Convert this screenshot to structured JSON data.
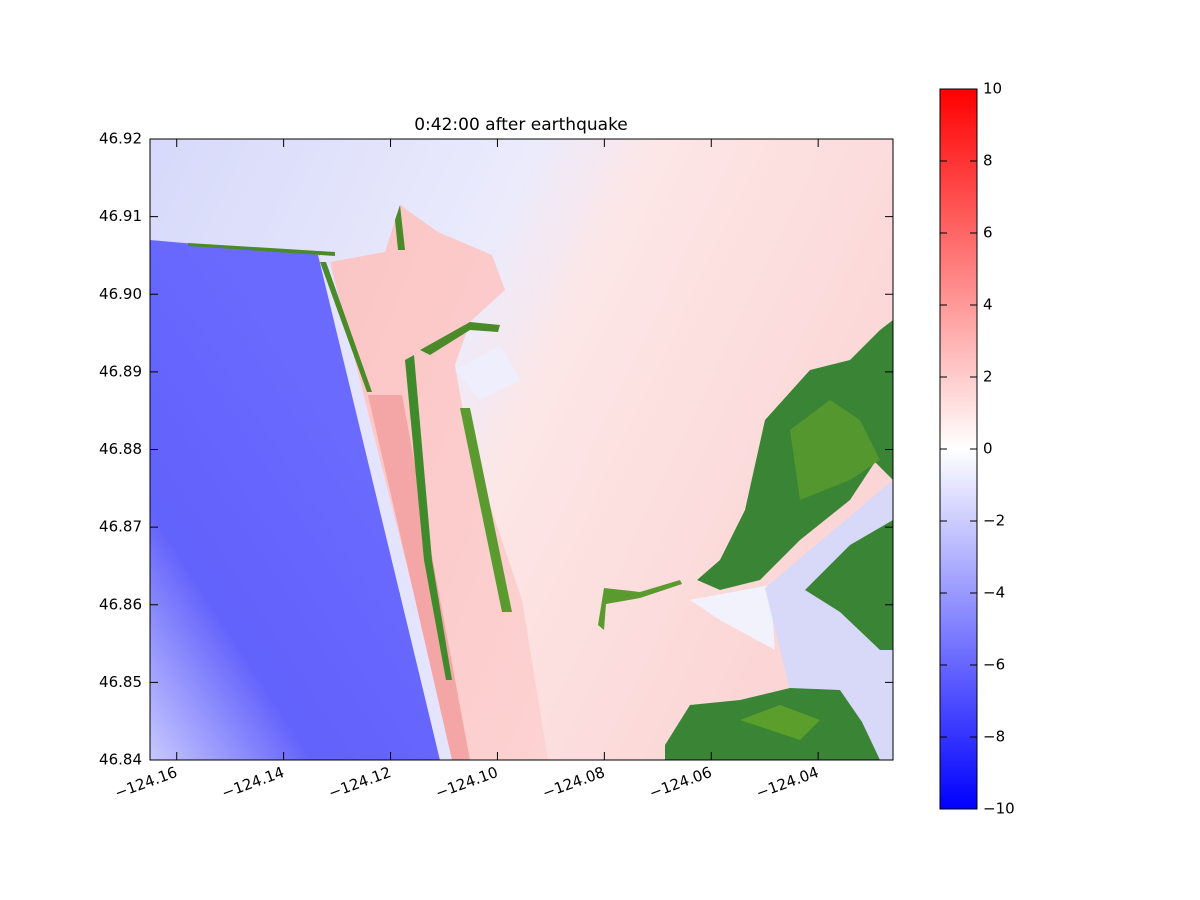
{
  "chart_data": {
    "type": "heatmap",
    "title": "0:42:00 after earthquake",
    "xlim": [
      -124.165,
      -124.026
    ],
    "xticks": [
      {
        "value": -124.16,
        "label": "−124.16"
      },
      {
        "value": -124.14,
        "label": "−124.14"
      },
      {
        "value": -124.12,
        "label": "−124.12"
      },
      {
        "value": -124.1,
        "label": "−124.10"
      },
      {
        "value": -124.08,
        "label": "−124.08"
      },
      {
        "value": -124.06,
        "label": "−124.06"
      },
      {
        "value": -124.04,
        "label": "−124.04"
      }
    ],
    "ylim": [
      46.84,
      46.92
    ],
    "yticks": [
      46.84,
      46.85,
      46.86,
      46.87,
      46.88,
      46.89,
      {
        "value": 46.9,
        "label": "46.90"
      },
      46.91,
      46.92
    ],
    "colorbar": {
      "clim": [
        -10,
        10
      ],
      "colormap": [
        "#0000ff",
        "#ffffff",
        "#ff0000"
      ],
      "ticks": [
        {
          "value": -10,
          "label": "−10"
        },
        {
          "value": -8,
          "label": "−8"
        },
        {
          "value": -6,
          "label": "−6"
        },
        {
          "value": -4,
          "label": "−4"
        },
        {
          "value": -2,
          "label": "−2"
        },
        0,
        2,
        4,
        6,
        8,
        10
      ]
    }
  }
}
